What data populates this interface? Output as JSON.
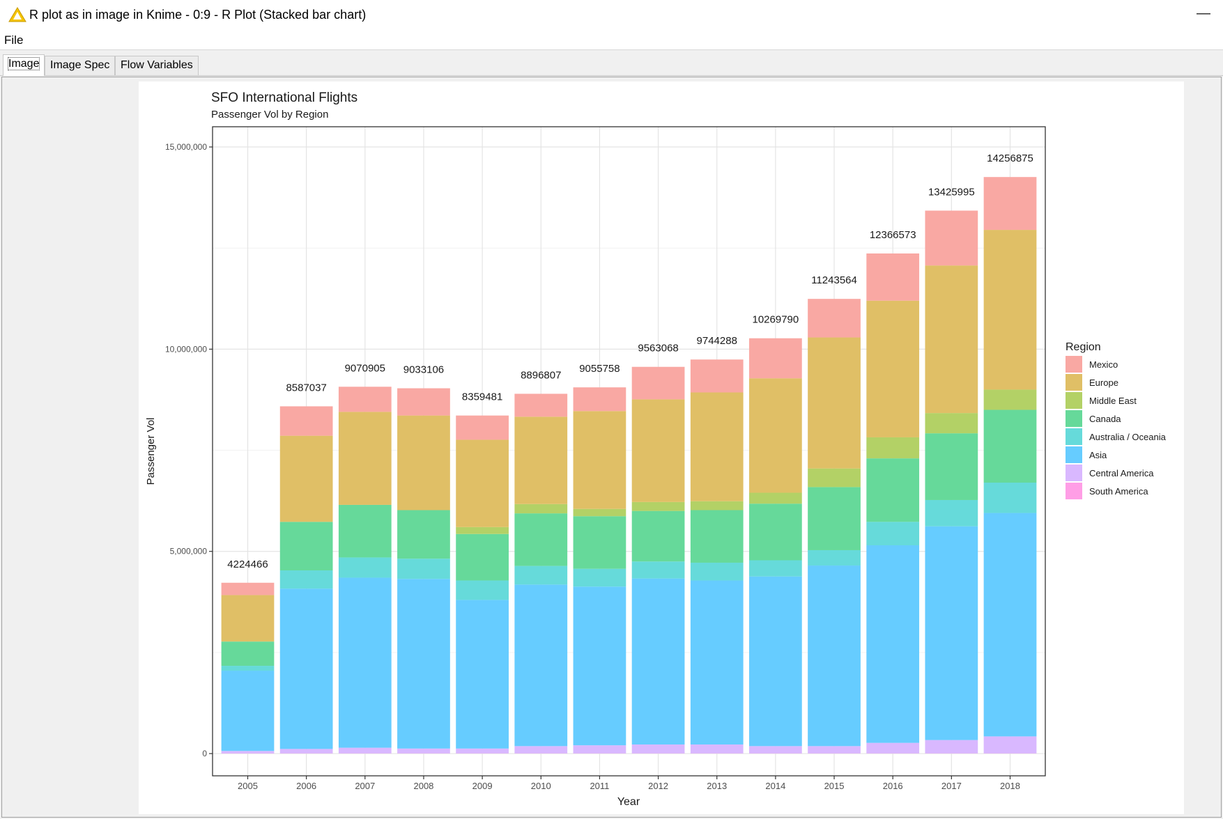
{
  "window": {
    "title": "R plot as in image in Knime - 0:9 - R Plot (Stacked bar chart)",
    "minimize_glyph": "—",
    "icon": "warning-icon"
  },
  "menu": {
    "file_label": "File"
  },
  "tabs": [
    {
      "label": "Image",
      "active": true
    },
    {
      "label": "Image Spec",
      "active": false
    },
    {
      "label": "Flow Variables",
      "active": false
    }
  ],
  "chart_data": {
    "type": "bar",
    "stacked": true,
    "title": "SFO International Flights",
    "subtitle": "Passenger Vol by Region",
    "xlabel": "Year",
    "ylabel": "Passenger Vol",
    "ylim": [
      -550000,
      15500000
    ],
    "yticks": [
      0,
      5000000,
      10000000,
      15000000
    ],
    "ytick_labels": [
      "0",
      "5,000,000",
      "10,000,000",
      "15,000,000"
    ],
    "grid": true,
    "legend": {
      "title": "Region",
      "position": "right"
    },
    "categories": [
      "2005",
      "2006",
      "2007",
      "2008",
      "2009",
      "2010",
      "2011",
      "2012",
      "2013",
      "2014",
      "2015",
      "2016",
      "2017",
      "2018"
    ],
    "totals": [
      "4224466",
      "8587037",
      "9070905",
      "9033106",
      "8359481",
      "8896807",
      "9055758",
      "9563068",
      "9744288",
      "10269790",
      "11243564",
      "12366573",
      "13425995",
      "14256875"
    ],
    "series": [
      {
        "name": "South America",
        "color": "#ff9ee6",
        "values": [
          5000,
          5000,
          5000,
          5000,
          5000,
          5000,
          5000,
          5000,
          5000,
          5000,
          5000,
          5000,
          5000,
          5000
        ]
      },
      {
        "name": "Central America",
        "color": "#d9b8ff",
        "values": [
          60000,
          110000,
          140000,
          120000,
          120000,
          180000,
          200000,
          220000,
          220000,
          180000,
          180000,
          260000,
          330000,
          420000
        ]
      },
      {
        "name": "Asia",
        "color": "#66ccff",
        "values": [
          1985000,
          3965000,
          4205000,
          4195000,
          3675000,
          3995000,
          3925000,
          4105000,
          4055000,
          4195000,
          4465000,
          4885000,
          5285000,
          5525000
        ]
      },
      {
        "name": "Australia / Oceania",
        "color": "#66dada",
        "values": [
          120000,
          450000,
          500000,
          500000,
          480000,
          460000,
          440000,
          420000,
          440000,
          400000,
          380000,
          580000,
          650000,
          750000
        ]
      },
      {
        "name": "Canada",
        "color": "#66d99a",
        "values": [
          600000,
          1200000,
          1300000,
          1200000,
          1150000,
          1300000,
          1300000,
          1250000,
          1300000,
          1400000,
          1560000,
          1570000,
          1650000,
          1800000
        ]
      },
      {
        "name": "Middle East",
        "color": "#b3d166",
        "values": [
          0,
          0,
          0,
          0,
          170000,
          230000,
          180000,
          220000,
          220000,
          270000,
          460000,
          520000,
          500000,
          500000
        ]
      },
      {
        "name": "Europe",
        "color": "#e0bf66",
        "values": [
          1150000,
          2130000,
          2300000,
          2340000,
          2160000,
          2160000,
          2420000,
          2540000,
          2690000,
          2830000,
          3240000,
          3380000,
          3650000,
          3950000
        ]
      },
      {
        "name": "Mexico",
        "color": "#f9a8a3",
        "values": [
          304466,
          727037,
          620905,
          673106,
          599481,
          566807,
          585758,
          803068,
          814288,
          989790,
          953564,
          1166573,
          1355995,
          1306875
        ]
      }
    ]
  }
}
